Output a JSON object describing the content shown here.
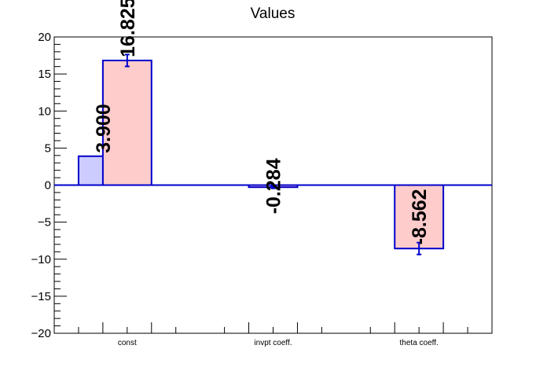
{
  "chart_data": {
    "type": "bar",
    "title": "Values",
    "xlabel": "",
    "ylabel": "",
    "ylim": [
      -20,
      20
    ],
    "yticks": [
      -20,
      -15,
      -10,
      -5,
      0,
      5,
      10,
      15,
      20
    ],
    "categories": [
      "const",
      "invpt coeff.",
      "theta coeff."
    ],
    "grid": false,
    "series": [
      {
        "values": [
          3.9,
          null,
          null
        ],
        "labels": [
          "3.900",
          "",
          ""
        ],
        "errors": [
          0,
          0,
          0
        ],
        "color": "#ccccff",
        "edge": "#0000cc"
      },
      {
        "values": [
          16.825,
          -0.284,
          -8.562
        ],
        "labels": [
          "16.825",
          "-0.284",
          "-8.562"
        ],
        "errors": [
          0.8,
          0.15,
          0.8
        ],
        "color": "#ffcccc",
        "edge": "#0000cc"
      }
    ],
    "zero_line_color": "#0000cc"
  }
}
